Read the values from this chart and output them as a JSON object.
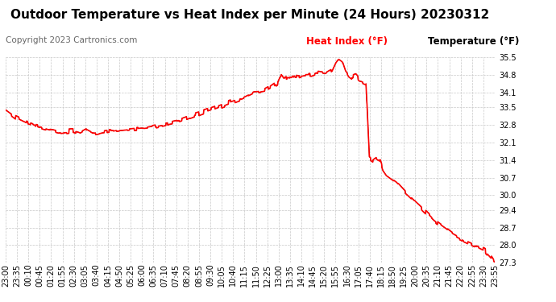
{
  "title": "Outdoor Temperature vs Heat Index per Minute (24 Hours) 20230312",
  "copyright": "Copyright 2023 Cartronics.com",
  "legend_heat": "Heat Index (°F)",
  "legend_temp": "Temperature (°F)",
  "heat_color": "#ff0000",
  "temp_color": "#000000",
  "bg_color": "#ffffff",
  "grid_color": "#c8c8c8",
  "ylim_min": 27.3,
  "ylim_max": 35.5,
  "yticks": [
    27.3,
    28.0,
    28.7,
    29.4,
    30.0,
    30.7,
    31.4,
    32.1,
    32.8,
    33.5,
    34.1,
    34.8,
    35.5
  ],
  "xtick_labels": [
    "23:00",
    "23:35",
    "00:10",
    "00:45",
    "01:20",
    "01:55",
    "02:30",
    "03:05",
    "03:40",
    "04:15",
    "04:50",
    "05:25",
    "06:00",
    "06:35",
    "07:10",
    "07:45",
    "08:20",
    "08:55",
    "09:30",
    "10:05",
    "10:40",
    "11:15",
    "11:50",
    "12:25",
    "13:00",
    "13:35",
    "14:10",
    "14:45",
    "15:20",
    "15:55",
    "16:30",
    "17:05",
    "17:40",
    "18:15",
    "18:50",
    "19:25",
    "20:00",
    "20:35",
    "21:10",
    "21:45",
    "22:20",
    "22:55",
    "23:30",
    "23:55"
  ],
  "title_fontsize": 11,
  "copyright_fontsize": 7.5,
  "legend_fontsize": 8.5,
  "tick_fontsize": 7,
  "linewidth": 1.2
}
